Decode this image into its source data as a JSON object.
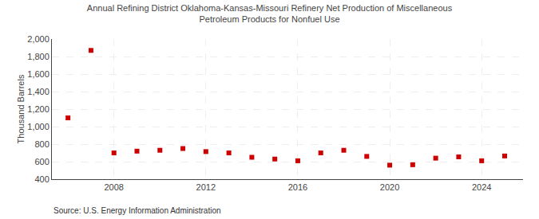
{
  "chart_data": {
    "type": "scatter",
    "title": "Annual Refining District Oklahoma-Kansas-Missouri Refinery Net Production of Miscellaneous\nPetroleum Products for Nonfuel Use",
    "ylabel": "Thousand Barrels",
    "annotations": [
      "Source: U.S. Energy Information Administration"
    ],
    "x": [
      2006,
      2007,
      2008,
      2009,
      2010,
      2011,
      2012,
      2013,
      2014,
      2015,
      2016,
      2017,
      2018,
      2019,
      2020,
      2021,
      2022,
      2023,
      2024,
      2025
    ],
    "values": [
      1100,
      1870,
      700,
      720,
      730,
      750,
      715,
      700,
      650,
      630,
      610,
      700,
      730,
      660,
      560,
      565,
      640,
      655,
      610,
      665
    ],
    "color": "#cc0000",
    "marker": "square",
    "xlim": [
      2005.3,
      2025.8
    ],
    "xticks": [
      2008,
      2012,
      2016,
      2020,
      2024
    ],
    "ylim": [
      400,
      2000
    ],
    "yticks": [
      400,
      600,
      800,
      {
        "value": 1000,
        "label": "1,000"
      },
      {
        "value": 1200,
        "label": "1,200"
      },
      {
        "value": 1400,
        "label": "1,400"
      },
      {
        "value": 1600,
        "label": "1,600"
      },
      {
        "value": 1800,
        "label": "1,800"
      },
      {
        "value": 2000,
        "label": "2,000"
      }
    ],
    "grid": true
  }
}
